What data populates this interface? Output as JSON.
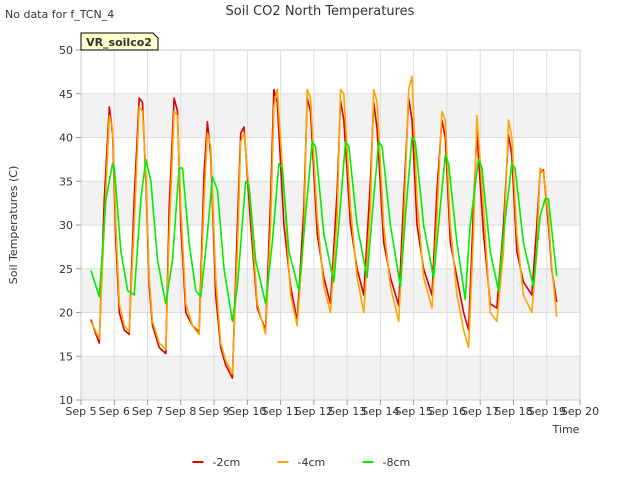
{
  "chart_data": {
    "type": "line",
    "title": "Soil CO2 North Temperatures",
    "subtitle": "No data for f_TCN_4",
    "xlabel": "Time",
    "ylabel": "Soil Temperatures (C)",
    "badge": "VR_soilco2",
    "xlim": [
      5,
      20
    ],
    "ylim": [
      10,
      50
    ],
    "y_ticks": [
      10,
      15,
      20,
      25,
      30,
      35,
      40,
      45,
      50
    ],
    "x_ticks": [
      {
        "v": 5,
        "label": "Sep 5"
      },
      {
        "v": 6,
        "label": "Sep 6"
      },
      {
        "v": 7,
        "label": "Sep 7"
      },
      {
        "v": 8,
        "label": "Sep 8"
      },
      {
        "v": 9,
        "label": "Sep 9"
      },
      {
        "v": 10,
        "label": "Sep 10"
      },
      {
        "v": 11,
        "label": "Sep 11"
      },
      {
        "v": 12,
        "label": "Sep 12"
      },
      {
        "v": 13,
        "label": "Sep 13"
      },
      {
        "v": 14,
        "label": "Sep 14"
      },
      {
        "v": 15,
        "label": "Sep 15"
      },
      {
        "v": 16,
        "label": "Sep 16"
      },
      {
        "v": 17,
        "label": "Sep 17"
      },
      {
        "v": 18,
        "label": "Sep 18"
      },
      {
        "v": 19,
        "label": "Sep 19"
      },
      {
        "v": 20,
        "label": "Sep 20"
      }
    ],
    "grid": true,
    "legend_position": "bottom-center",
    "series": [
      {
        "name": "-2cm",
        "color": "#dd0000",
        "x": [
          5.3,
          5.45,
          5.55,
          5.7,
          5.85,
          5.95,
          6.05,
          6.15,
          6.3,
          6.45,
          6.6,
          6.75,
          6.85,
          6.95,
          7.05,
          7.15,
          7.35,
          7.55,
          7.65,
          7.8,
          7.9,
          8.0,
          8.15,
          8.35,
          8.55,
          8.7,
          8.8,
          8.9,
          9.05,
          9.2,
          9.35,
          9.55,
          9.7,
          9.8,
          9.9,
          10.1,
          10.3,
          10.55,
          10.7,
          10.8,
          10.9,
          11.1,
          11.3,
          11.5,
          11.7,
          11.8,
          11.9,
          12.1,
          12.3,
          12.5,
          12.7,
          12.8,
          12.9,
          13.1,
          13.3,
          13.5,
          13.7,
          13.8,
          13.9,
          14.1,
          14.3,
          14.55,
          14.7,
          14.85,
          14.95,
          15.1,
          15.3,
          15.55,
          15.7,
          15.85,
          15.95,
          16.1,
          16.3,
          16.5,
          16.65,
          16.8,
          16.9,
          17.1,
          17.3,
          17.5,
          17.7,
          17.85,
          17.95,
          18.1,
          18.3,
          18.55,
          18.7,
          18.8,
          18.9,
          19.05,
          19.15,
          19.3
        ],
        "values": [
          19.2,
          17.5,
          16.5,
          33.0,
          43.5,
          40.5,
          28.0,
          20.0,
          18.0,
          17.5,
          33.0,
          44.5,
          44.0,
          35.0,
          23.0,
          18.5,
          16.0,
          15.3,
          32.0,
          44.5,
          43.0,
          30.0,
          20.0,
          18.5,
          17.8,
          36.0,
          41.8,
          38.0,
          22.0,
          16.0,
          14.0,
          12.5,
          30.0,
          40.5,
          41.2,
          30.0,
          20.5,
          18.0,
          33.0,
          45.5,
          44.0,
          30.0,
          23.0,
          19.0,
          32.0,
          44.5,
          43.0,
          29.0,
          24.0,
          21.0,
          34.0,
          44.2,
          42.0,
          30.0,
          25.0,
          22.0,
          35.0,
          44.0,
          41.0,
          28.0,
          24.0,
          20.8,
          33.0,
          44.5,
          42.0,
          30.0,
          25.0,
          22.0,
          34.0,
          42.0,
          40.0,
          28.0,
          24.0,
          20.0,
          18.0,
          32.0,
          40.5,
          29.0,
          21.0,
          20.5,
          30.0,
          40.3,
          38.0,
          27.0,
          23.5,
          22.0,
          30.0,
          36.0,
          36.3,
          30.0,
          25.0,
          21.2
        ]
      },
      {
        "name": "-4cm",
        "color": "#ffa500",
        "x": [
          5.3,
          5.45,
          5.55,
          5.7,
          5.85,
          5.95,
          6.05,
          6.15,
          6.3,
          6.45,
          6.6,
          6.75,
          6.85,
          6.95,
          7.05,
          7.15,
          7.35,
          7.55,
          7.65,
          7.8,
          7.9,
          8.0,
          8.15,
          8.35,
          8.55,
          8.7,
          8.8,
          8.9,
          9.05,
          9.2,
          9.35,
          9.55,
          9.7,
          9.8,
          9.9,
          10.1,
          10.3,
          10.55,
          10.7,
          10.8,
          10.9,
          11.1,
          11.3,
          11.5,
          11.7,
          11.8,
          11.9,
          12.1,
          12.3,
          12.5,
          12.7,
          12.8,
          12.9,
          13.1,
          13.3,
          13.5,
          13.7,
          13.8,
          13.9,
          14.1,
          14.3,
          14.55,
          14.7,
          14.85,
          14.95,
          15.1,
          15.3,
          15.55,
          15.7,
          15.85,
          15.95,
          16.1,
          16.3,
          16.5,
          16.65,
          16.8,
          16.9,
          17.1,
          17.3,
          17.5,
          17.7,
          17.85,
          17.95,
          18.1,
          18.3,
          18.55,
          18.7,
          18.8,
          18.9,
          19.05,
          19.15,
          19.3
        ],
        "values": [
          19.0,
          17.8,
          17.0,
          30.0,
          42.5,
          41.0,
          30.0,
          21.0,
          18.5,
          17.8,
          30.0,
          43.5,
          43.0,
          36.0,
          24.0,
          19.0,
          16.5,
          15.8,
          29.0,
          43.0,
          42.5,
          32.0,
          21.0,
          18.5,
          17.5,
          33.0,
          40.5,
          39.0,
          24.0,
          16.5,
          14.5,
          13.0,
          27.0,
          39.5,
          40.5,
          32.0,
          21.0,
          17.5,
          30.0,
          43.5,
          45.5,
          34.0,
          22.0,
          18.5,
          29.0,
          45.5,
          44.5,
          31.0,
          23.0,
          20.0,
          31.0,
          45.5,
          45.0,
          32.0,
          24.0,
          20.0,
          32.0,
          45.5,
          44.0,
          30.0,
          23.0,
          19.0,
          30.0,
          45.5,
          47.0,
          33.0,
          24.0,
          20.5,
          31.0,
          43.0,
          42.0,
          30.0,
          22.0,
          18.0,
          16.0,
          29.0,
          42.5,
          32.0,
          20.0,
          19.0,
          27.0,
          42.0,
          40.0,
          29.0,
          22.0,
          20.0,
          27.0,
          36.5,
          36.0,
          31.0,
          25.5,
          19.5
        ]
      },
      {
        "name": "-8cm",
        "color": "#00ee00",
        "x": [
          5.3,
          5.45,
          5.55,
          5.75,
          5.95,
          6.0,
          6.2,
          6.4,
          6.6,
          6.8,
          6.95,
          7.1,
          7.3,
          7.55,
          7.75,
          7.95,
          8.05,
          8.25,
          8.45,
          8.6,
          8.8,
          8.95,
          9.1,
          9.3,
          9.55,
          9.7,
          9.95,
          10.05,
          10.25,
          10.55,
          10.75,
          10.95,
          11.05,
          11.25,
          11.55,
          11.7,
          11.95,
          12.05,
          12.3,
          12.6,
          12.75,
          12.95,
          13.05,
          13.3,
          13.6,
          13.75,
          13.95,
          14.05,
          14.3,
          14.6,
          14.75,
          14.95,
          15.05,
          15.3,
          15.6,
          15.75,
          15.95,
          16.05,
          16.3,
          16.55,
          16.7,
          16.95,
          17.05,
          17.3,
          17.55,
          17.7,
          17.95,
          18.05,
          18.3,
          18.6,
          18.8,
          18.95,
          19.05,
          19.3
        ],
        "values": [
          24.8,
          23.0,
          21.8,
          33.0,
          37.0,
          36.5,
          27.0,
          22.5,
          22.0,
          33.0,
          37.5,
          35.0,
          26.0,
          21.0,
          26.0,
          36.5,
          36.5,
          28.0,
          22.5,
          21.8,
          29.0,
          35.5,
          34.0,
          25.0,
          19.0,
          23.0,
          35.0,
          34.5,
          26.0,
          21.0,
          28.0,
          37.0,
          36.5,
          27.0,
          22.5,
          29.0,
          39.5,
          39.0,
          29.0,
          23.5,
          30.0,
          39.5,
          39.0,
          30.0,
          24.0,
          31.0,
          39.5,
          39.0,
          30.0,
          23.0,
          31.0,
          40.0,
          39.5,
          30.0,
          24.0,
          30.0,
          38.0,
          37.0,
          28.0,
          21.5,
          30.0,
          37.5,
          36.5,
          27.0,
          22.5,
          29.0,
          37.0,
          36.5,
          28.0,
          23.0,
          31.0,
          33.0,
          33.0,
          24.2
        ]
      }
    ]
  }
}
